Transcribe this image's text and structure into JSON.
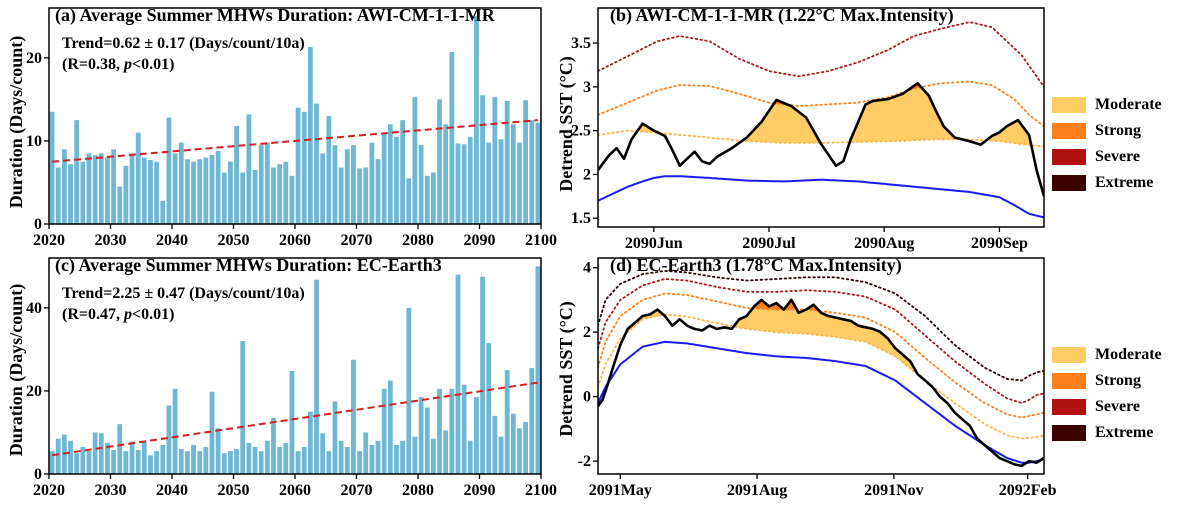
{
  "chart_data": [
    {
      "id": "a",
      "type": "bar",
      "title": "(a) Average Summer MHWs Duration: AWI-CM-1-1-MR",
      "annotation_line1": "Trend=0.62 ± 0.17 (Days/count/10a)",
      "annotation_line2_prefix": "(R=0.38, ",
      "annotation_line2_p": "p",
      "annotation_line2_suffix": "<0.01)",
      "ylabel": "Duration (Days/count)",
      "xlabel": "",
      "xlim": [
        2020,
        2100
      ],
      "ylim": [
        0,
        26
      ],
      "xticks": [
        2020,
        2030,
        2040,
        2050,
        2060,
        2070,
        2080,
        2090,
        2100
      ],
      "yticks": [
        0,
        10,
        20
      ],
      "bar_color": "#6fb8d4",
      "trend_color": "#d62020",
      "x": [
        2021,
        2022,
        2023,
        2024,
        2025,
        2026,
        2027,
        2028,
        2029,
        2030,
        2031,
        2032,
        2033,
        2034,
        2035,
        2036,
        2037,
        2038,
        2039,
        2040,
        2041,
        2042,
        2043,
        2044,
        2045,
        2046,
        2047,
        2048,
        2049,
        2050,
        2051,
        2052,
        2053,
        2054,
        2055,
        2056,
        2057,
        2058,
        2059,
        2060,
        2061,
        2062,
        2063,
        2064,
        2065,
        2066,
        2067,
        2068,
        2069,
        2070,
        2071,
        2072,
        2073,
        2074,
        2075,
        2076,
        2077,
        2078,
        2079,
        2080,
        2081,
        2082,
        2083,
        2084,
        2085,
        2086,
        2087,
        2088,
        2089,
        2090,
        2091,
        2092,
        2093,
        2094,
        2095,
        2096,
        2097,
        2098,
        2099,
        2100
      ],
      "values": [
        13.5,
        6.8,
        9.0,
        7.2,
        12.5,
        7.5,
        8.5,
        8.3,
        8.5,
        8.0,
        9.0,
        4.5,
        7.0,
        8.5,
        11.0,
        8.0,
        7.7,
        7.5,
        2.8,
        12.8,
        8.5,
        9.8,
        7.8,
        7.5,
        7.8,
        8.0,
        8.3,
        8.8,
        6.2,
        7.5,
        11.8,
        6.2,
        13.2,
        6.5,
        9.5,
        9.8,
        6.8,
        7.2,
        7.5,
        5.8,
        14.0,
        13.5,
        21.3,
        14.5,
        8.5,
        13.0,
        9.5,
        6.8,
        9.0,
        9.5,
        6.7,
        6.8,
        9.8,
        7.8,
        11.0,
        12.0,
        10.5,
        12.5,
        5.5,
        15.3,
        9.5,
        5.8,
        6.2,
        15.0,
        12.0,
        20.7,
        9.7,
        9.6,
        10.5,
        25.0,
        15.5,
        9.8,
        15.3,
        10.2,
        14.8,
        12.0,
        9.8,
        14.9,
        12.5,
        12.2
      ],
      "trend": {
        "x": [
          2021,
          2100
        ],
        "y": [
          7.5,
          12.5
        ]
      }
    },
    {
      "id": "b",
      "type": "line",
      "title": "(b) AWI-CM-1-1-MR (1.22°C Max.Intensity)",
      "ylabel": "Detrend SST (°C)",
      "xlim": [
        0,
        120
      ],
      "ylim": [
        1.4,
        3.9
      ],
      "xticks": [
        {
          "x": 15,
          "label": "2090Jun"
        },
        {
          "x": 46,
          "label": "2090Jul"
        },
        {
          "x": 77,
          "label": "2090Aug"
        },
        {
          "x": 108,
          "label": "2090Sep"
        }
      ],
      "yticks": [
        1.5,
        2.0,
        2.5,
        3.0,
        3.5
      ],
      "series": [
        {
          "role": "climatology",
          "color": "#1a1aff",
          "x": [
            0,
            4,
            8,
            12,
            15,
            18,
            22,
            30,
            40,
            50,
            60,
            70,
            80,
            90,
            100,
            108,
            112,
            116,
            120
          ],
          "y": [
            1.7,
            1.78,
            1.86,
            1.92,
            1.96,
            1.98,
            1.98,
            1.96,
            1.93,
            1.92,
            1.94,
            1.92,
            1.88,
            1.84,
            1.8,
            1.74,
            1.65,
            1.55,
            1.51
          ]
        },
        {
          "role": "threshold-moderate",
          "color": "#ffb347",
          "x": [
            0,
            8,
            15,
            30,
            40,
            50,
            60,
            70,
            80,
            90,
            100,
            108,
            115,
            120
          ],
          "y": [
            2.45,
            2.5,
            2.48,
            2.42,
            2.38,
            2.36,
            2.36,
            2.37,
            2.38,
            2.4,
            2.4,
            2.38,
            2.34,
            2.32
          ]
        },
        {
          "role": "threshold-strong",
          "color": "#ff7f1a",
          "x": [
            0,
            8,
            16,
            22,
            30,
            38,
            46,
            54,
            62,
            70,
            78,
            85,
            92,
            100,
            106,
            112,
            116,
            120
          ],
          "y": [
            2.68,
            2.82,
            2.96,
            3.02,
            3.01,
            2.92,
            2.82,
            2.78,
            2.8,
            2.82,
            2.88,
            2.98,
            3.04,
            3.06,
            3.02,
            2.86,
            2.68,
            2.55
          ]
        },
        {
          "role": "threshold-severe",
          "color": "#a81b1b",
          "x": [
            0,
            8,
            16,
            22,
            30,
            38,
            46,
            54,
            62,
            70,
            78,
            85,
            92,
            100,
            106,
            110,
            114,
            120
          ],
          "y": [
            3.18,
            3.35,
            3.52,
            3.58,
            3.52,
            3.32,
            3.18,
            3.12,
            3.18,
            3.28,
            3.42,
            3.58,
            3.66,
            3.74,
            3.68,
            3.52,
            3.36,
            3.0
          ]
        },
        {
          "role": "sst",
          "color": "#000000",
          "x": [
            0,
            3,
            5,
            7,
            9,
            12,
            15,
            18,
            20,
            22,
            24,
            26,
            28,
            30,
            32,
            34,
            36,
            40,
            44,
            48,
            52,
            56,
            60,
            64,
            66,
            68,
            70,
            72,
            74,
            78,
            82,
            86,
            89,
            91,
            93,
            96,
            100,
            103,
            106,
            108,
            110,
            113,
            116,
            118,
            120
          ],
          "y": [
            2.05,
            2.22,
            2.3,
            2.18,
            2.4,
            2.58,
            2.5,
            2.44,
            2.28,
            2.1,
            2.18,
            2.26,
            2.15,
            2.12,
            2.2,
            2.25,
            2.3,
            2.42,
            2.6,
            2.85,
            2.78,
            2.65,
            2.35,
            2.1,
            2.15,
            2.4,
            2.6,
            2.8,
            2.84,
            2.86,
            2.92,
            3.04,
            2.9,
            2.72,
            2.55,
            2.42,
            2.38,
            2.34,
            2.44,
            2.48,
            2.55,
            2.62,
            2.45,
            2.05,
            1.75
          ]
        }
      ],
      "legend": [
        "Moderate",
        "Strong",
        "Severe",
        "Extreme"
      ]
    },
    {
      "id": "c",
      "type": "bar",
      "title": "(c) Average Summer MHWs Duration: EC-Earth3",
      "annotation_line1": "Trend=2.25 ± 0.47 (Days/count/10a)",
      "annotation_line2_prefix": "(R=0.47, ",
      "annotation_line2_p": "p",
      "annotation_line2_suffix": "<0.01)",
      "ylabel": "Duration (Days/count)",
      "xlabel": "",
      "xlim": [
        2020,
        2100
      ],
      "ylim": [
        0,
        52
      ],
      "xticks": [
        2020,
        2030,
        2040,
        2050,
        2060,
        2070,
        2080,
        2090,
        2100
      ],
      "yticks": [
        0,
        20,
        40
      ],
      "bar_color": "#6fb8d4",
      "trend_color": "#d62020",
      "x": [
        2021,
        2022,
        2023,
        2024,
        2025,
        2026,
        2027,
        2028,
        2029,
        2030,
        2031,
        2032,
        2033,
        2034,
        2035,
        2036,
        2037,
        2038,
        2039,
        2040,
        2041,
        2042,
        2043,
        2044,
        2045,
        2046,
        2047,
        2048,
        2049,
        2050,
        2051,
        2052,
        2053,
        2054,
        2055,
        2056,
        2057,
        2058,
        2059,
        2060,
        2061,
        2062,
        2063,
        2064,
        2065,
        2066,
        2067,
        2068,
        2069,
        2070,
        2071,
        2072,
        2073,
        2074,
        2075,
        2076,
        2077,
        2078,
        2079,
        2080,
        2081,
        2082,
        2083,
        2084,
        2085,
        2086,
        2087,
        2088,
        2089,
        2090,
        2091,
        2092,
        2093,
        2094,
        2095,
        2096,
        2097,
        2098,
        2099,
        2100
      ],
      "values": [
        5.5,
        8.5,
        9.5,
        8.0,
        5.0,
        6.5,
        5.5,
        10.0,
        9.8,
        7.5,
        5.8,
        12.0,
        5.5,
        7.8,
        5.8,
        7.8,
        4.5,
        5.5,
        7.0,
        16.5,
        20.5,
        6.0,
        5.5,
        7.0,
        5.5,
        6.5,
        19.8,
        11.0,
        5.0,
        5.5,
        6.0,
        32.0,
        7.5,
        6.5,
        5.5,
        8.0,
        13.5,
        6.5,
        7.5,
        24.8,
        5.5,
        6.5,
        15.0,
        46.8,
        9.8,
        5.5,
        17.5,
        8.0,
        6.5,
        27.5,
        5.5,
        10.0,
        7.0,
        8.0,
        20.5,
        22.5,
        7.0,
        8.0,
        40.0,
        9.0,
        18.5,
        16.0,
        8.5,
        20.5,
        10.5,
        20.5,
        48.0,
        21.5,
        8.0,
        18.5,
        47.5,
        31.5,
        14.0,
        9.0,
        25.0,
        14.5,
        11.0,
        12.5,
        25.5,
        50.0
      ],
      "trend": {
        "x": [
          2021,
          2100
        ],
        "y": [
          4.5,
          22.0
        ]
      }
    },
    {
      "id": "d",
      "type": "line",
      "title": "(d) EC-Earth3 (1.78°C Max.Intensity)",
      "ylabel": "Detrend SST (°C)",
      "xlim": [
        0,
        300
      ],
      "ylim": [
        -2.4,
        4.3
      ],
      "xticks": [
        {
          "x": 15,
          "label": "2091May"
        },
        {
          "x": 107,
          "label": "2091Aug"
        },
        {
          "x": 199,
          "label": "2091Nov"
        },
        {
          "x": 289,
          "label": "2092Feb"
        }
      ],
      "yticks": [
        -2,
        0,
        2,
        4
      ],
      "series": [
        {
          "role": "climatology",
          "color": "#1a1aff",
          "x": [
            0,
            5,
            15,
            30,
            45,
            60,
            80,
            100,
            120,
            140,
            160,
            180,
            200,
            220,
            240,
            260,
            275,
            285,
            290,
            295,
            300
          ],
          "y": [
            -0.2,
            0.3,
            1.0,
            1.55,
            1.7,
            1.65,
            1.5,
            1.35,
            1.25,
            1.2,
            1.1,
            0.95,
            0.5,
            -0.2,
            -0.9,
            -1.5,
            -1.9,
            -2.05,
            -2.05,
            -2.0,
            -1.95
          ]
        },
        {
          "role": "threshold-moderate",
          "color": "#ffb347",
          "x": [
            0,
            5,
            15,
            30,
            45,
            60,
            80,
            100,
            120,
            140,
            160,
            180,
            200,
            220,
            240,
            260,
            275,
            285,
            290,
            295,
            300
          ],
          "y": [
            0.3,
            1.0,
            1.8,
            2.4,
            2.55,
            2.48,
            2.28,
            2.1,
            2.0,
            1.95,
            1.85,
            1.7,
            1.25,
            0.5,
            -0.2,
            -0.85,
            -1.2,
            -1.3,
            -1.28,
            -1.25,
            -1.2
          ]
        },
        {
          "role": "threshold-strong",
          "color": "#ff7f1a",
          "x": [
            0,
            5,
            15,
            30,
            45,
            60,
            80,
            100,
            120,
            140,
            160,
            180,
            200,
            220,
            240,
            260,
            275,
            285,
            290,
            295,
            300
          ],
          "y": [
            0.9,
            1.7,
            2.5,
            3.0,
            3.2,
            3.15,
            2.95,
            2.75,
            2.7,
            2.7,
            2.6,
            2.45,
            2.0,
            1.2,
            0.45,
            -0.2,
            -0.55,
            -0.65,
            -0.6,
            -0.55,
            -0.5
          ]
        },
        {
          "role": "threshold-severe",
          "color": "#a81b1b",
          "x": [
            0,
            5,
            15,
            30,
            45,
            60,
            80,
            100,
            120,
            140,
            160,
            180,
            200,
            220,
            240,
            260,
            275,
            285,
            290,
            295,
            300
          ],
          "y": [
            1.5,
            2.3,
            3.0,
            3.45,
            3.65,
            3.6,
            3.4,
            3.25,
            3.25,
            3.3,
            3.25,
            3.1,
            2.7,
            1.9,
            1.1,
            0.4,
            -0.05,
            -0.2,
            -0.1,
            0.05,
            0.1
          ]
        },
        {
          "role": "threshold-extreme",
          "color": "#2a0000",
          "x": [
            0,
            5,
            15,
            30,
            45,
            60,
            80,
            100,
            120,
            140,
            160,
            180,
            200,
            220,
            240,
            260,
            275,
            285,
            290,
            295,
            300
          ],
          "y": [
            2.2,
            3.0,
            3.5,
            3.8,
            3.9,
            3.85,
            3.7,
            3.6,
            3.65,
            3.7,
            3.7,
            3.55,
            3.2,
            2.5,
            1.6,
            0.9,
            0.55,
            0.5,
            0.65,
            0.75,
            0.8
          ]
        },
        {
          "role": "sst",
          "color": "#000000",
          "x": [
            0,
            3,
            6,
            10,
            15,
            20,
            25,
            30,
            35,
            40,
            45,
            50,
            55,
            60,
            65,
            70,
            75,
            80,
            85,
            90,
            95,
            100,
            105,
            110,
            115,
            120,
            125,
            130,
            135,
            140,
            145,
            150,
            155,
            160,
            165,
            170,
            175,
            180,
            185,
            190,
            195,
            200,
            205,
            210,
            215,
            220,
            225,
            230,
            235,
            240,
            245,
            250,
            255,
            260,
            265,
            270,
            275,
            280,
            285,
            290,
            295,
            300
          ],
          "y": [
            -0.3,
            -0.1,
            0.3,
            0.9,
            1.6,
            2.1,
            2.3,
            2.5,
            2.55,
            2.7,
            2.5,
            2.2,
            2.4,
            2.2,
            2.1,
            2.05,
            2.2,
            2.1,
            2.15,
            2.1,
            2.4,
            2.5,
            2.8,
            3.0,
            2.8,
            2.9,
            2.7,
            3.0,
            2.6,
            2.7,
            2.85,
            2.6,
            2.5,
            2.45,
            2.4,
            2.35,
            2.2,
            2.15,
            2.1,
            2.0,
            1.8,
            1.5,
            1.3,
            1.1,
            0.7,
            0.5,
            0.3,
            0.0,
            -0.2,
            -0.5,
            -0.7,
            -0.9,
            -1.3,
            -1.5,
            -1.7,
            -1.9,
            -2.0,
            -2.1,
            -2.15,
            -2.0,
            -2.05,
            -1.9
          ]
        }
      ],
      "legend": [
        "Moderate",
        "Strong",
        "Severe",
        "Extreme"
      ]
    }
  ],
  "legend_colors": {
    "Moderate": "#ffcc66",
    "Strong": "#ff7f1a",
    "Severe": "#b01212",
    "Extreme": "#3a0000"
  }
}
